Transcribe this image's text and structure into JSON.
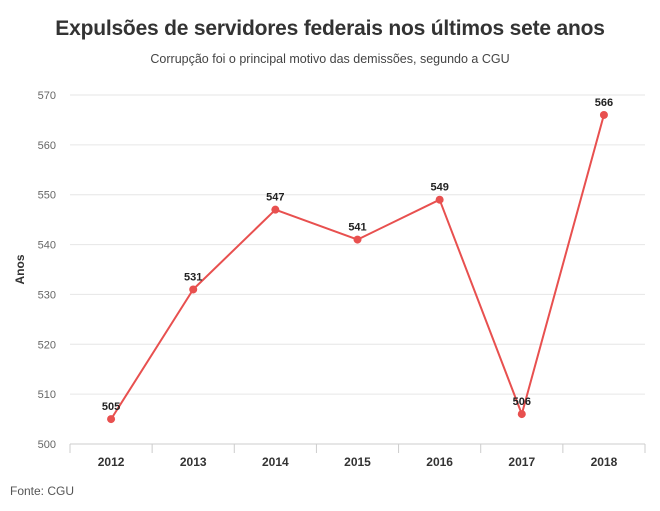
{
  "source_text": "Fonte: CGU",
  "chart_data": {
    "type": "line",
    "title": "Expulsões de servidores federais nos últimos sete anos",
    "subtitle": "Corrupção foi o principal motivo das demissões, segundo a CGU",
    "xlabel": "",
    "ylabel": "Anos",
    "categories": [
      "2012",
      "2013",
      "2014",
      "2015",
      "2016",
      "2017",
      "2018"
    ],
    "series": [
      {
        "values": [
          505,
          531,
          547,
          541,
          549,
          506,
          566
        ]
      }
    ],
    "ylim": [
      500,
      570
    ],
    "yticks": [
      500,
      510,
      520,
      530,
      540,
      550,
      560,
      570
    ],
    "grid": true,
    "data_labels": true,
    "colors": {
      "line": "#e8504f",
      "grid": "#e6e6e6",
      "axis": "#cccccc"
    }
  }
}
